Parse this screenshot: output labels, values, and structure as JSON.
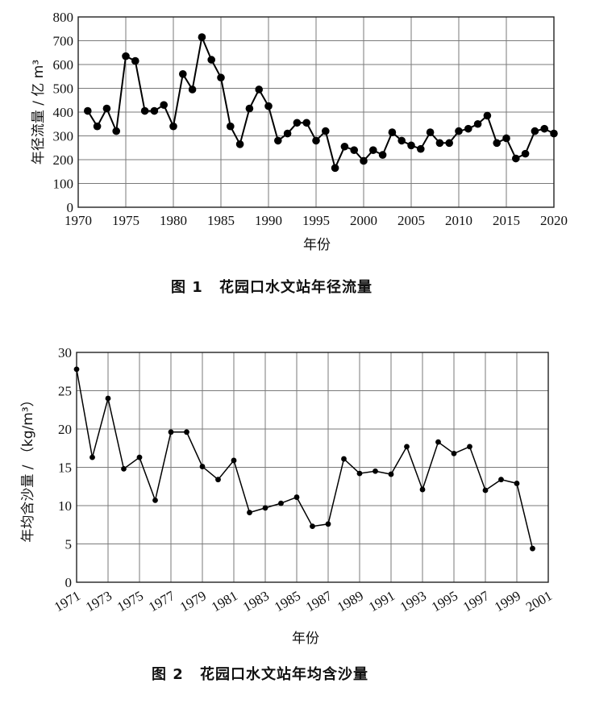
{
  "figures": [
    {
      "caption_no": "图 1",
      "caption_text": "花园口水文站年径流量",
      "chart_data": {
        "type": "line",
        "title": "",
        "xlabel": "年份",
        "ylabel": "年径流量 / 亿 m³",
        "xlim": [
          1970,
          2020
        ],
        "ylim": [
          0,
          800
        ],
        "x_ticks": [
          1970,
          1975,
          1980,
          1985,
          1990,
          1995,
          2000,
          2005,
          2010,
          2015,
          2020
        ],
        "y_ticks": [
          0,
          100,
          200,
          300,
          400,
          500,
          600,
          700,
          800
        ],
        "grid": true,
        "x": [
          1971,
          1972,
          1973,
          1974,
          1975,
          1976,
          1977,
          1978,
          1979,
          1980,
          1981,
          1982,
          1983,
          1984,
          1985,
          1986,
          1987,
          1988,
          1989,
          1990,
          1991,
          1992,
          1993,
          1994,
          1995,
          1996,
          1997,
          1998,
          1999,
          2000,
          2001,
          2002,
          2003,
          2004,
          2005,
          2006,
          2007,
          2008,
          2009,
          2010,
          2011,
          2012,
          2013,
          2014,
          2015,
          2016,
          2017,
          2018,
          2019,
          2020
        ],
        "series": [
          {
            "values": [
              405,
              340,
              415,
              320,
              635,
              615,
              405,
              405,
              430,
              340,
              560,
              495,
              715,
              620,
              545,
              340,
              265,
              415,
              495,
              425,
              280,
              310,
              355,
              355,
              280,
              320,
              165,
              255,
              240,
              195,
              240,
              220,
              315,
              280,
              260,
              245,
              315,
              270,
              270,
              320,
              330,
              350,
              385,
              270,
              290,
              205,
              225,
              320,
              330,
              310
            ]
          }
        ]
      }
    },
    {
      "caption_no": "图 2",
      "caption_text": "花园口水文站年均含沙量",
      "chart_data": {
        "type": "line",
        "title": "",
        "xlabel": "年份",
        "ylabel": "年均含沙量 / （kg/m³）",
        "xlim": [
          1971,
          2001
        ],
        "ylim": [
          0,
          30
        ],
        "x_ticks": [
          1971,
          1973,
          1975,
          1977,
          1979,
          1981,
          1983,
          1985,
          1987,
          1989,
          1991,
          1993,
          1995,
          1997,
          1999,
          2001
        ],
        "y_ticks": [
          0,
          5,
          10,
          15,
          20,
          25,
          30
        ],
        "grid": true,
        "x": [
          1971,
          1972,
          1973,
          1974,
          1975,
          1976,
          1977,
          1978,
          1979,
          1980,
          1981,
          1982,
          1983,
          1984,
          1985,
          1986,
          1987,
          1988,
          1989,
          1990,
          1991,
          1992,
          1993,
          1994,
          1995,
          1996,
          1997,
          1998,
          1999,
          2000
        ],
        "series": [
          {
            "values": [
              27.8,
              16.3,
              24.0,
              14.8,
              16.3,
              10.7,
              19.6,
              19.6,
              15.1,
              13.4,
              15.9,
              9.1,
              9.7,
              10.3,
              11.1,
              7.3,
              7.6,
              16.1,
              14.2,
              14.5,
              14.1,
              17.7,
              12.1,
              18.3,
              16.8,
              17.7,
              12.0,
              13.4,
              12.9,
              4.4
            ]
          }
        ]
      }
    }
  ]
}
